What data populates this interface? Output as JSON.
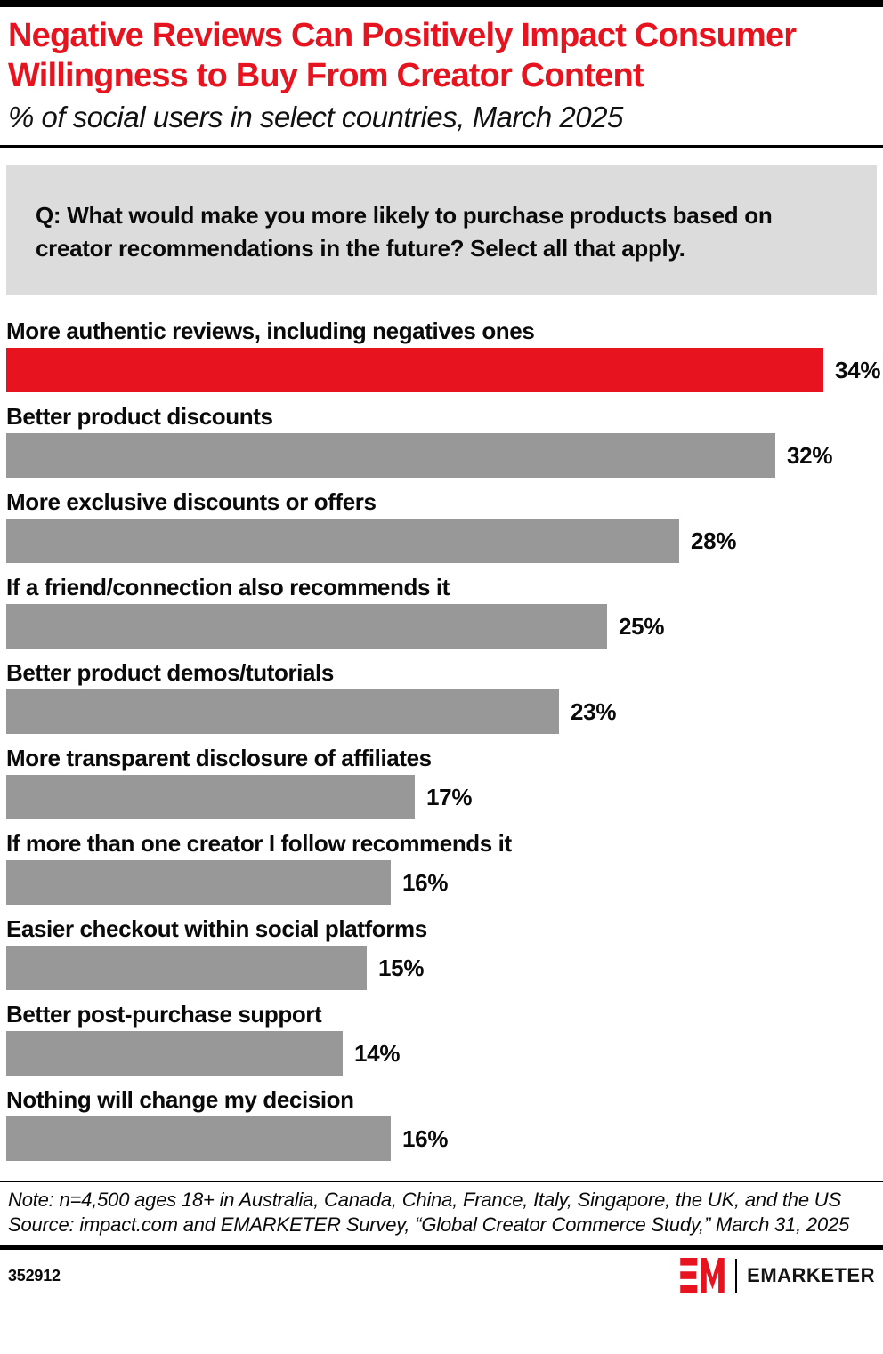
{
  "header": {
    "title_lines": [
      "Negative Reviews Can Positively Impact Consumer",
      "Willingness to Buy From Creator Content"
    ],
    "subtitle": "% of social users in select countries, March 2025"
  },
  "question": "Q: What would make you more likely to purchase products based on creator recommendations in the future? Select all that apply.",
  "chart_data": {
    "type": "bar",
    "orientation": "horizontal",
    "unit": "%",
    "xlim": [
      0,
      34
    ],
    "grid": false,
    "categories": [
      "More authentic reviews, including negatives ones",
      "Better product discounts",
      "More exclusive discounts or offers",
      "If a friend/connection also recommends it",
      "Better product demos/tutorials",
      "More transparent disclosure of affiliates",
      "If more than one creator I follow recommends it",
      "Easier checkout within social platforms",
      "Better post-purchase support",
      "Nothing will change my decision"
    ],
    "values": [
      34,
      32,
      28,
      25,
      23,
      17,
      16,
      15,
      14,
      16
    ],
    "value_labels": [
      "34%",
      "32%",
      "28%",
      "25%",
      "23%",
      "17%",
      "16%",
      "15%",
      "14%",
      "16%"
    ],
    "highlight_index": 0,
    "colors": {
      "highlight": "#E7131E",
      "default": "#989898"
    }
  },
  "footnote": {
    "note": "Note: n=4,500 ages 18+ in Australia, Canada, China, France, Italy, Singapore, the UK, and the US",
    "source": "Source: impact.com and EMARKETER Survey, “Global Creator Commerce Study,” March 31, 2025"
  },
  "footer": {
    "chart_id": "352912",
    "brand": "EMARKETER"
  }
}
